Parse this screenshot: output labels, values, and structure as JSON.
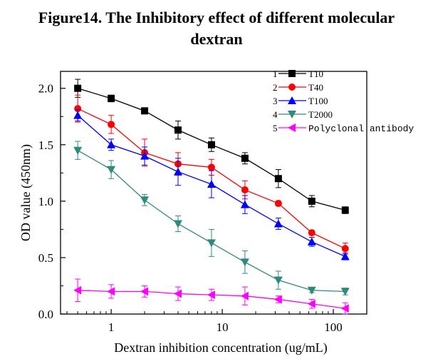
{
  "title_lines": [
    "Figure14. The Inhibitory effect of different molecular",
    "dextran"
  ],
  "chart_data": {
    "type": "line",
    "title": "Figure14. The Inhibitory effect of different molecular dextran",
    "xlabel": "Dextran inhibition concentration (ug/mL)",
    "ylabel": "OD value (450nm)",
    "xscale": "log",
    "xlim": [
      0.35,
      200
    ],
    "ylim": [
      0.0,
      2.15
    ],
    "x_ticks": [
      1,
      10,
      100
    ],
    "x_tick_labels": [
      "1",
      "10",
      "100"
    ],
    "y_ticks": [
      0.0,
      0.5,
      1.0,
      1.5,
      2.0
    ],
    "y_tick_labels": [
      "0.0",
      "0.5",
      "1.0",
      "1.5",
      "2.0"
    ],
    "grid": false,
    "legend_position": "top-right",
    "x": [
      0.5,
      1,
      2,
      4,
      8,
      16,
      32,
      64,
      128
    ],
    "series": [
      {
        "name": "T10",
        "legend_number": "1",
        "color": "#000000",
        "marker": "square",
        "values": [
          2.0,
          1.91,
          1.8,
          1.63,
          1.5,
          1.38,
          1.2,
          1.0,
          0.92
        ],
        "errors": [
          0.08,
          0.03,
          0.02,
          0.08,
          0.06,
          0.05,
          0.08,
          0.05,
          0.03
        ]
      },
      {
        "name": "T40",
        "legend_number": "2",
        "color": "#ff0000",
        "marker": "circle",
        "values": [
          1.82,
          1.68,
          1.43,
          1.33,
          1.3,
          1.1,
          0.98,
          0.72,
          0.58
        ],
        "errors": [
          0.12,
          0.08,
          0.12,
          0.1,
          0.07,
          0.08,
          0.02,
          0.02,
          0.05
        ]
      },
      {
        "name": "T100",
        "legend_number": "3",
        "color": "#0000ff",
        "marker": "triangle-up",
        "values": [
          1.76,
          1.5,
          1.4,
          1.26,
          1.15,
          0.97,
          0.8,
          0.64,
          0.51
        ],
        "errors": [
          0.05,
          0.05,
          0.08,
          0.12,
          0.12,
          0.08,
          0.05,
          0.04,
          0.03
        ]
      },
      {
        "name": "T2000",
        "legend_number": "4",
        "color": "#2e8b7a",
        "marker": "triangle-down",
        "values": [
          1.45,
          1.28,
          1.01,
          0.8,
          0.63,
          0.46,
          0.3,
          0.21,
          0.2
        ],
        "errors": [
          0.08,
          0.08,
          0.05,
          0.07,
          0.12,
          0.1,
          0.08,
          0.02,
          0.03
        ]
      },
      {
        "name": "Polyclonal antibody",
        "legend_number": "5",
        "color": "#ff00ff",
        "marker": "triangle-left",
        "values": [
          0.21,
          0.2,
          0.2,
          0.18,
          0.17,
          0.16,
          0.13,
          0.09,
          0.05
        ],
        "errors": [
          0.1,
          0.06,
          0.05,
          0.06,
          0.05,
          0.08,
          0.03,
          0.04,
          0.05
        ]
      }
    ]
  }
}
